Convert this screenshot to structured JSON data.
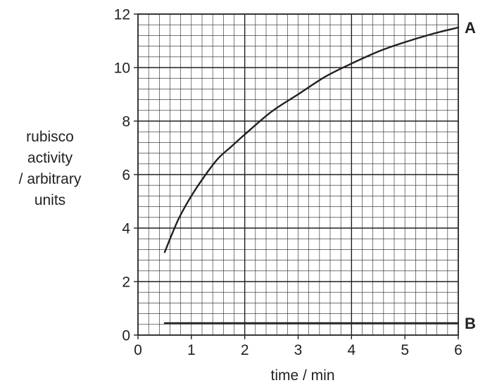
{
  "chart_data": {
    "type": "line",
    "ylabel_lines": [
      "rubisco",
      "activity",
      "/ arbitrary",
      "units"
    ],
    "xlabel": "time / min",
    "xlim": [
      0,
      6
    ],
    "ylim": [
      0,
      12
    ],
    "xticks": [
      0,
      1,
      2,
      3,
      4,
      5,
      6
    ],
    "yticks": [
      0,
      2,
      4,
      6,
      8,
      10,
      12
    ],
    "grid": "major lines every 2 units on y and 2 units on x, minor grid every 0.2 units",
    "series": [
      {
        "name": "A",
        "x": [
          0.5,
          0.75,
          1.0,
          1.25,
          1.5,
          1.75,
          2.0,
          2.5,
          3.0,
          3.5,
          4.0,
          4.5,
          5.0,
          5.5,
          6.0
        ],
        "y": [
          3.1,
          4.3,
          5.2,
          5.95,
          6.6,
          7.05,
          7.5,
          8.35,
          9.0,
          9.65,
          10.15,
          10.6,
          10.95,
          11.25,
          11.5
        ]
      },
      {
        "name": "B",
        "x": [
          0.5,
          2.0,
          4.0,
          6.0
        ],
        "y": [
          0.45,
          0.45,
          0.45,
          0.45
        ]
      }
    ]
  }
}
